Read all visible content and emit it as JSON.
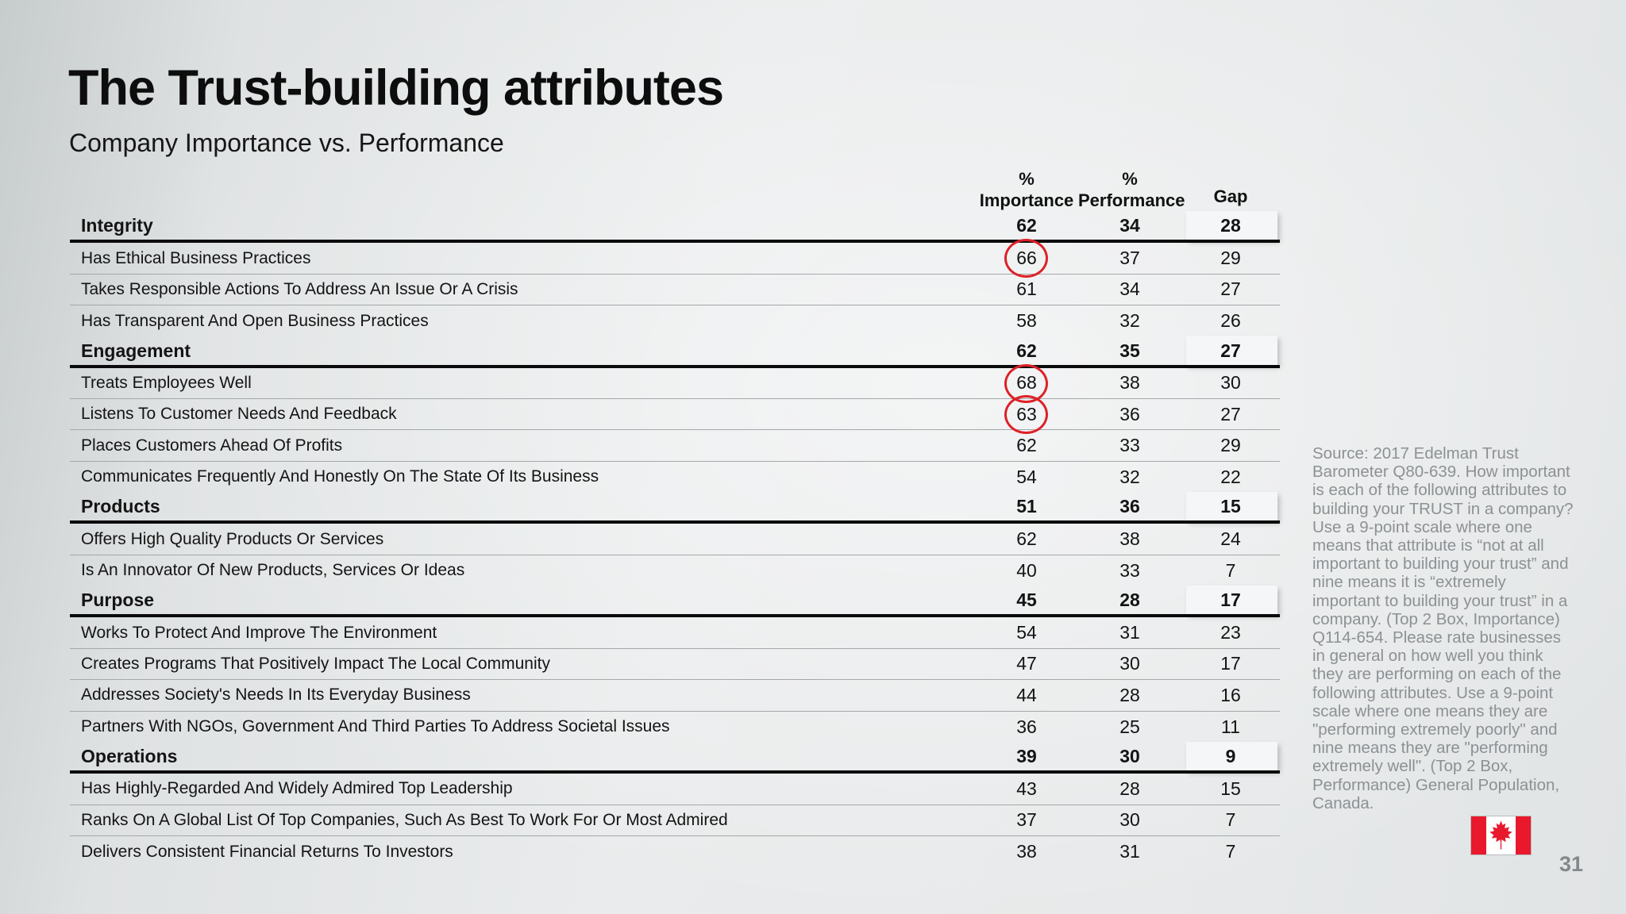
{
  "slide": {
    "title": "The Trust-building attributes",
    "subtitle": "Company Importance vs. Performance",
    "page_number": "31"
  },
  "table": {
    "headers": {
      "importance_line1": "%",
      "importance_line2": "Importance",
      "performance_line1": "%",
      "performance_line2": "Performance",
      "gap": "Gap"
    },
    "rows": [
      {
        "label": "Integrity",
        "importance": "62",
        "performance": "34",
        "gap": "28",
        "category": true,
        "circled": false
      },
      {
        "label": "Has Ethical Business Practices",
        "importance": "66",
        "performance": "37",
        "gap": "29",
        "category": false,
        "circled": true
      },
      {
        "label": "Takes Responsible Actions To Address An Issue Or A Crisis",
        "importance": "61",
        "performance": "34",
        "gap": "27",
        "category": false,
        "circled": false
      },
      {
        "label": "Has Transparent And Open Business Practices",
        "importance": "58",
        "performance": "32",
        "gap": "26",
        "category": false,
        "circled": false
      },
      {
        "label": "Engagement",
        "importance": "62",
        "performance": "35",
        "gap": "27",
        "category": true,
        "circled": false
      },
      {
        "label": "Treats Employees Well",
        "importance": "68",
        "performance": "38",
        "gap": "30",
        "category": false,
        "circled": true
      },
      {
        "label": "Listens To Customer Needs And Feedback",
        "importance": "63",
        "performance": "36",
        "gap": "27",
        "category": false,
        "circled": true
      },
      {
        "label": "Places Customers Ahead Of Profits",
        "importance": "62",
        "performance": "33",
        "gap": "29",
        "category": false,
        "circled": false
      },
      {
        "label": "Communicates Frequently And Honestly On The State Of Its Business",
        "importance": "54",
        "performance": "32",
        "gap": "22",
        "category": false,
        "circled": false
      },
      {
        "label": "Products",
        "importance": "51",
        "performance": "36",
        "gap": "15",
        "category": true,
        "circled": false
      },
      {
        "label": "Offers High Quality Products Or Services",
        "importance": "62",
        "performance": "38",
        "gap": "24",
        "category": false,
        "circled": false
      },
      {
        "label": "Is An Innovator Of New Products, Services Or Ideas",
        "importance": "40",
        "performance": "33",
        "gap": "7",
        "category": false,
        "circled": false
      },
      {
        "label": "Purpose",
        "importance": "45",
        "performance": "28",
        "gap": "17",
        "category": true,
        "circled": false
      },
      {
        "label": "Works To Protect And Improve The Environment",
        "importance": "54",
        "performance": "31",
        "gap": "23",
        "category": false,
        "circled": false
      },
      {
        "label": "Creates Programs That Positively Impact The Local Community",
        "importance": "47",
        "performance": "30",
        "gap": "17",
        "category": false,
        "circled": false
      },
      {
        "label": "Addresses Society's Needs In Its Everyday Business",
        "importance": "44",
        "performance": "28",
        "gap": "16",
        "category": false,
        "circled": false
      },
      {
        "label": "Partners With NGOs, Government And Third Parties To Address Societal Issues",
        "importance": "36",
        "performance": "25",
        "gap": "11",
        "category": false,
        "circled": false
      },
      {
        "label": "Operations",
        "importance": "39",
        "performance": "30",
        "gap": "9",
        "category": true,
        "circled": false
      },
      {
        "label": "Has Highly-Regarded And Widely Admired Top Leadership",
        "importance": "43",
        "performance": "28",
        "gap": "15",
        "category": false,
        "circled": false
      },
      {
        "label": "Ranks On A Global List Of Top Companies, Such As Best To Work For Or Most Admired",
        "importance": "37",
        "performance": "30",
        "gap": "7",
        "category": false,
        "circled": false
      },
      {
        "label": "Delivers Consistent Financial Returns To Investors",
        "importance": "38",
        "performance": "31",
        "gap": "7",
        "category": false,
        "circled": false
      }
    ]
  },
  "source_note": "Source: 2017 Edelman Trust Barometer Q80-639. How important is each of the following attributes to building your TRUST in a company? Use a 9-point scale where one means that attribute is “not at all important to building your trust” and nine means it is “extremely important to building your trust” in a company. (Top 2 Box, Importance) Q114-654. Please rate businesses in general on how well you think they are performing on each of the following attributes. Use a 9-point scale where one means they are \"performing extremely poorly\" and nine means they are \"performing extremely well\". (Top 2 Box, Performance) General Population, Canada.",
  "colors": {
    "accent_red": "#dd2127",
    "flag_red": "#e8192c",
    "text": "#131313",
    "muted_gray": "#8c9194"
  }
}
